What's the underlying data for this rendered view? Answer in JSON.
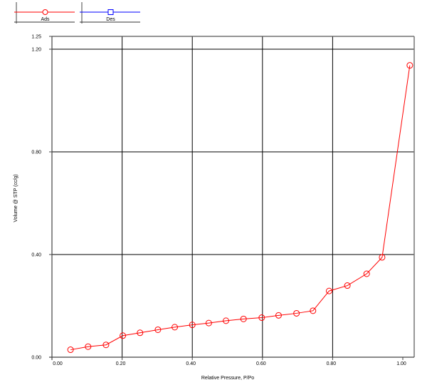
{
  "chart_data": {
    "type": "line",
    "xlabel": "Relative Pressure, P/Po",
    "ylabel": "Volume @ STP (cc/g)",
    "xlim": [
      0,
      1.03
    ],
    "ylim": [
      0,
      1.25
    ],
    "x_ticks": [
      "0.00",
      "0.20",
      "0.40",
      "0.60",
      "0.80",
      "1.00"
    ],
    "y_ticks": [
      "0.00",
      "0.40",
      "0.80",
      "1.20",
      "1.25"
    ],
    "grid": true,
    "legend_position": "top-left",
    "series": [
      {
        "name": "Ads",
        "color": "#ff0000",
        "marker": "circle",
        "x": [
          0.053,
          0.103,
          0.154,
          0.202,
          0.251,
          0.302,
          0.35,
          0.4,
          0.447,
          0.496,
          0.546,
          0.598,
          0.646,
          0.697,
          0.744,
          0.79,
          0.842,
          0.897,
          0.941,
          1.02
        ],
        "y": [
          0.029,
          0.041,
          0.048,
          0.084,
          0.095,
          0.107,
          0.117,
          0.126,
          0.133,
          0.142,
          0.149,
          0.154,
          0.163,
          0.171,
          0.181,
          0.258,
          0.279,
          0.325,
          0.389,
          1.137
        ]
      },
      {
        "name": "Des",
        "color": "#0000ff",
        "marker": "square",
        "x": [],
        "y": []
      }
    ]
  }
}
